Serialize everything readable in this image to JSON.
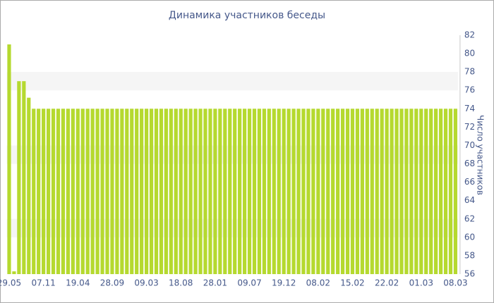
{
  "chart_data": {
    "type": "bar",
    "title": "Динамика участников беседы",
    "y_label": "Число участников",
    "categories": [
      "29.05",
      null,
      null,
      null,
      null,
      null,
      null,
      "07.11",
      null,
      null,
      null,
      null,
      null,
      null,
      "19.04",
      null,
      null,
      null,
      null,
      null,
      null,
      "28.09",
      null,
      null,
      null,
      null,
      null,
      null,
      "09.03",
      null,
      null,
      null,
      null,
      null,
      null,
      "18.08",
      null,
      null,
      null,
      null,
      null,
      null,
      "28.01",
      null,
      null,
      null,
      null,
      null,
      null,
      "09.07",
      null,
      null,
      null,
      null,
      null,
      null,
      "19.12",
      null,
      null,
      null,
      null,
      null,
      null,
      "08.02",
      null,
      null,
      null,
      null,
      null,
      null,
      "15.02",
      null,
      null,
      null,
      null,
      null,
      null,
      "22.02",
      null,
      null,
      null,
      null,
      null,
      null,
      "01.03",
      null,
      null,
      null,
      null,
      null,
      null,
      "08.03"
    ],
    "values": [
      81,
      56.3,
      77,
      77,
      75.2,
      74,
      74,
      74,
      74,
      74,
      74,
      74,
      74,
      74,
      74,
      74,
      74,
      74,
      74,
      74,
      74,
      74,
      74,
      74,
      74,
      74,
      74,
      74,
      74,
      74,
      74,
      74,
      74,
      74,
      74,
      74,
      74,
      74,
      74,
      74,
      74,
      74,
      74,
      74,
      74,
      74,
      74,
      74,
      74,
      74,
      74,
      74,
      74,
      74,
      74,
      74,
      74,
      74,
      74,
      74,
      74,
      74,
      74,
      74,
      74,
      74,
      74,
      74,
      74,
      74,
      74,
      74,
      74,
      74,
      74,
      74,
      74,
      74,
      74,
      74,
      74,
      74,
      74,
      74,
      74,
      74,
      74,
      74,
      74,
      74,
      74,
      74
    ],
    "color": "#b5d92f",
    "ylim": [
      56,
      82
    ],
    "yticks": [
      56,
      58,
      60,
      62,
      64,
      66,
      68,
      70,
      72,
      74,
      76,
      78,
      80,
      82
    ],
    "grid": "bands",
    "y_axis_side": "right"
  }
}
